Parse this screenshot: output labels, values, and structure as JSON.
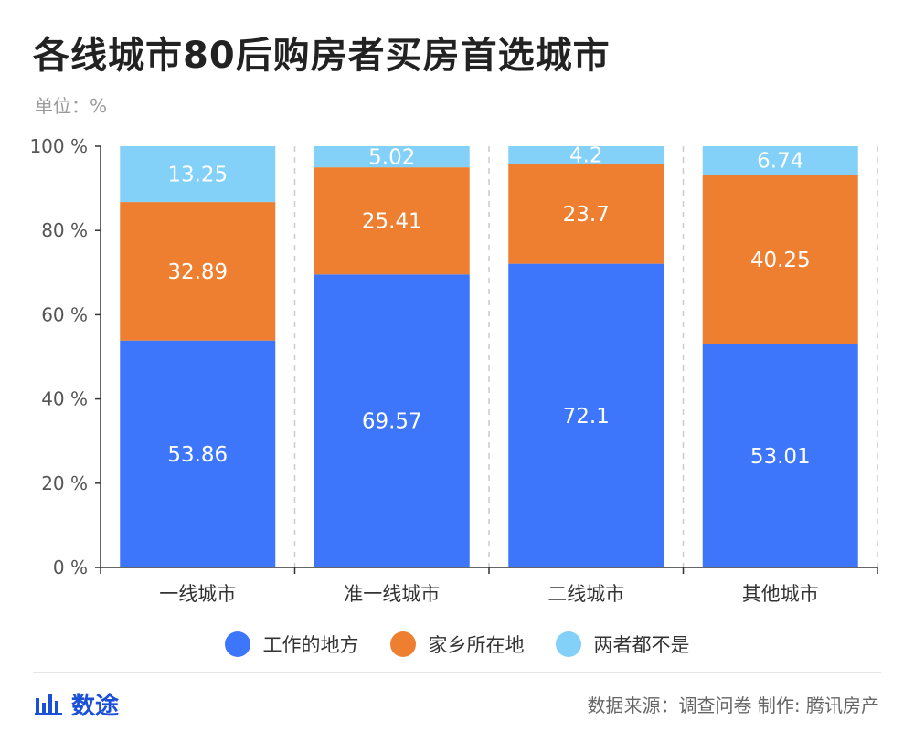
{
  "title": "各线城市80后购房者买房首选城市",
  "unit_label": "单位：%",
  "chart_data": {
    "type": "bar",
    "stacked": true,
    "categories": [
      "一线城市",
      "准一线城市",
      "二线城市",
      "其他城市"
    ],
    "series": [
      {
        "name": "工作的地方",
        "color": "#3d76fb",
        "values": [
          53.86,
          69.57,
          72.1,
          53.01
        ]
      },
      {
        "name": "家乡所在地",
        "color": "#ee7f30",
        "values": [
          32.89,
          25.41,
          23.7,
          40.25
        ]
      },
      {
        "name": "两者都不是",
        "color": "#83d0f8",
        "values": [
          13.25,
          5.02,
          4.2,
          6.74
        ]
      }
    ],
    "y_ticks": [
      "0 %",
      "20 %",
      "40 %",
      "60 %",
      "80 %",
      "100 %"
    ],
    "ylim": [
      0,
      100
    ],
    "legend_position": "bottom"
  },
  "brand": {
    "name": "数途",
    "icon": "bar-chart-icon",
    "color": "#1a4fd8"
  },
  "footer": {
    "source": "数据来源：调查问卷 制作: 腾讯房产"
  }
}
